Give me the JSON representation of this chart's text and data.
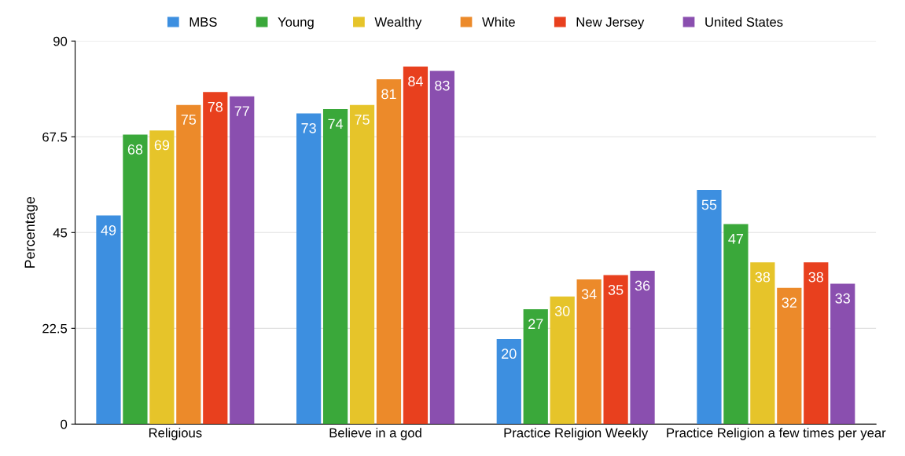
{
  "chart_data": {
    "type": "bar",
    "ylabel": "Percentage",
    "categories": [
      "Religious",
      "Believe in a god",
      "Practice Religion Weekly",
      "Practice Religion a few times per year"
    ],
    "series": [
      {
        "name": "MBS",
        "color": "#3d8fe0",
        "values": [
          49,
          73,
          20,
          55
        ]
      },
      {
        "name": "Young",
        "color": "#3aa83a",
        "values": [
          68,
          74,
          27,
          47
        ]
      },
      {
        "name": "Wealthy",
        "color": "#e6c42a",
        "values": [
          69,
          75,
          30,
          38
        ]
      },
      {
        "name": "White",
        "color": "#ec8a2a",
        "values": [
          75,
          81,
          34,
          32
        ]
      },
      {
        "name": "New Jersey",
        "color": "#e8401e",
        "values": [
          78,
          84,
          35,
          38
        ]
      },
      {
        "name": "United States",
        "color": "#8a4faf",
        "values": [
          77,
          83,
          36,
          33
        ]
      }
    ],
    "ylim": [
      0,
      90
    ],
    "yticks": [
      0,
      22.5,
      45,
      67.5,
      90
    ],
    "grid": "y",
    "legend": "top",
    "data_labels": true
  }
}
